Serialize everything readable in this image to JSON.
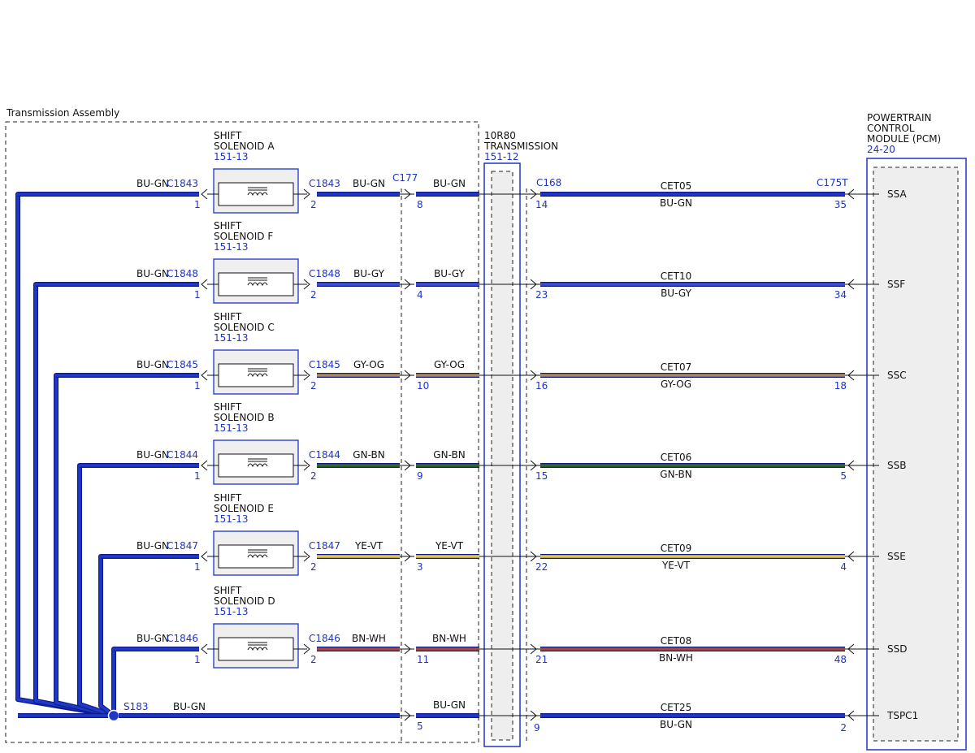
{
  "assembly_label": "Transmission Assembly",
  "transmission": {
    "line1": "10R80",
    "line2": "TRANSMISSION",
    "ref": "151-12"
  },
  "pcm": {
    "line1": "POWERTRAIN",
    "line2": "CONTROL",
    "line3": "MODULE (PCM)",
    "ref": "24-20"
  },
  "colors": {
    "BU-GN": "#1e38c8",
    "BU-GY": "#3b4fd6",
    "GY-OG": "#a88a5c",
    "GN-BN": "#2f6a1a",
    "YE-VT": "#e4c948",
    "BN-WH": "#a8493a"
  },
  "connectors": {
    "inline": "C177",
    "trans": "C168",
    "pcm": "C175T"
  },
  "circuits": [
    {
      "solenoid_line1": "SHIFT",
      "solenoid_line2": "SOLENOID A",
      "solenoid_ref": "151-13",
      "conn": "C1843",
      "ground_color": "BU-GN",
      "pin_in": "1",
      "pin_out": "2",
      "wire_color": "BU-GN",
      "inline_pin": "8",
      "trans_pin": "14",
      "circuit": "CET05",
      "pcm_pin": "35",
      "signal": "SSA"
    },
    {
      "solenoid_line1": "SHIFT",
      "solenoid_line2": "SOLENOID F",
      "solenoid_ref": "151-13",
      "conn": "C1848",
      "ground_color": "BU-GN",
      "pin_in": "1",
      "pin_out": "2",
      "wire_color": "BU-GY",
      "inline_pin": "4",
      "trans_pin": "23",
      "circuit": "CET10",
      "pcm_pin": "34",
      "signal": "SSF"
    },
    {
      "solenoid_line1": "SHIFT",
      "solenoid_line2": "SOLENOID C",
      "solenoid_ref": "151-13",
      "conn": "C1845",
      "ground_color": "BU-GN",
      "pin_in": "1",
      "pin_out": "2",
      "wire_color": "GY-OG",
      "inline_pin": "10",
      "trans_pin": "16",
      "circuit": "CET07",
      "pcm_pin": "18",
      "signal": "SSC"
    },
    {
      "solenoid_line1": "SHIFT",
      "solenoid_line2": "SOLENOID B",
      "solenoid_ref": "151-13",
      "conn": "C1844",
      "ground_color": "BU-GN",
      "pin_in": "1",
      "pin_out": "2",
      "wire_color": "GN-BN",
      "inline_pin": "9",
      "trans_pin": "15",
      "circuit": "CET06",
      "pcm_pin": "5",
      "signal": "SSB"
    },
    {
      "solenoid_line1": "SHIFT",
      "solenoid_line2": "SOLENOID E",
      "solenoid_ref": "151-13",
      "conn": "C1847",
      "ground_color": "BU-GN",
      "pin_in": "1",
      "pin_out": "2",
      "wire_color": "YE-VT",
      "inline_pin": "3",
      "trans_pin": "22",
      "circuit": "CET09",
      "pcm_pin": "4",
      "signal": "SSE"
    },
    {
      "solenoid_line1": "SHIFT",
      "solenoid_line2": "SOLENOID D",
      "solenoid_ref": "151-13",
      "conn": "C1846",
      "ground_color": "BU-GN",
      "pin_in": "1",
      "pin_out": "2",
      "wire_color": "BN-WH",
      "inline_pin": "11",
      "trans_pin": "21",
      "circuit": "CET08",
      "pcm_pin": "48",
      "signal": "SSD"
    }
  ],
  "splice": {
    "name": "S183",
    "color": "BU-GN",
    "inline_color": "BU-GN",
    "inline_pin": "5",
    "trans_pin": "9",
    "circuit": "CET25",
    "wire_color": "BU-GN",
    "pcm_pin": "2",
    "signal": "TSPC1"
  }
}
